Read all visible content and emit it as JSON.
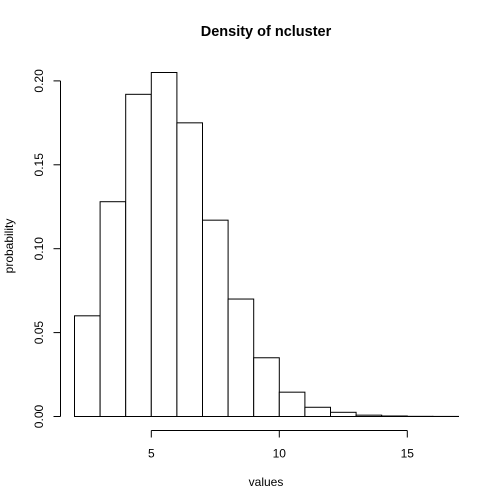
{
  "chart_data": {
    "type": "bar",
    "title": "Density of ncluster",
    "xlabel": "values",
    "ylabel": "probability",
    "bins": [
      {
        "start": 2,
        "end": 3,
        "value": 0.06
      },
      {
        "start": 3,
        "end": 4,
        "value": 0.128
      },
      {
        "start": 4,
        "end": 5,
        "value": 0.192
      },
      {
        "start": 5,
        "end": 6,
        "value": 0.205
      },
      {
        "start": 6,
        "end": 7,
        "value": 0.175
      },
      {
        "start": 7,
        "end": 8,
        "value": 0.117
      },
      {
        "start": 8,
        "end": 9,
        "value": 0.07
      },
      {
        "start": 9,
        "end": 10,
        "value": 0.035
      },
      {
        "start": 10,
        "end": 11,
        "value": 0.0145
      },
      {
        "start": 11,
        "end": 12,
        "value": 0.0055
      },
      {
        "start": 12,
        "end": 13,
        "value": 0.0025
      },
      {
        "start": 13,
        "end": 14,
        "value": 0.0008
      },
      {
        "start": 14,
        "end": 15,
        "value": 0.0003
      },
      {
        "start": 15,
        "end": 16,
        "value": 0.0001
      },
      {
        "start": 16,
        "end": 17,
        "value": 5e-05
      }
    ],
    "x_ticks": [
      5,
      10,
      15
    ],
    "x_tick_labels": [
      "5",
      "10",
      "15"
    ],
    "y_ticks": [
      0.0,
      0.05,
      0.1,
      0.15,
      0.2
    ],
    "y_tick_labels": [
      "0.00",
      "0.05",
      "0.10",
      "0.15",
      "0.20"
    ],
    "xlim": [
      2,
      17
    ],
    "ylim": [
      0,
      0.205
    ],
    "grid": false,
    "legend": "none"
  }
}
